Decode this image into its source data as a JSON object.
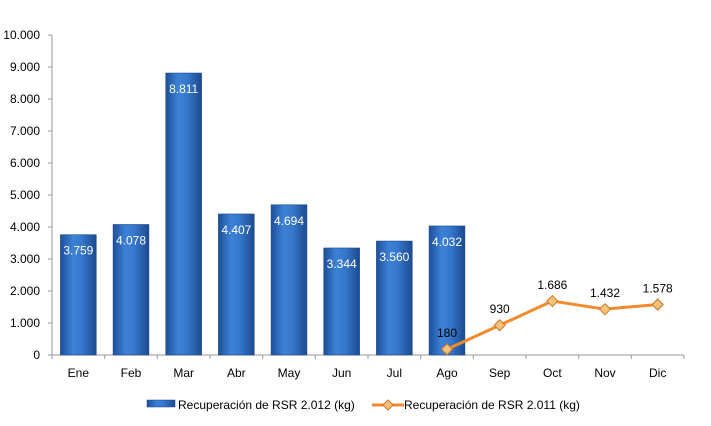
{
  "chart_data": {
    "type": "bar",
    "categories": [
      "Ene",
      "Feb",
      "Mar",
      "Abr",
      "May",
      "Jun",
      "Jul",
      "Ago",
      "Sep",
      "Oct",
      "Nov",
      "Dic"
    ],
    "series": [
      {
        "name": "Recuperación de RSR 2.012 (kg)",
        "type": "bar",
        "color": "#2e6fc4",
        "values": [
          3759,
          4078,
          8811,
          4407,
          4694,
          3344,
          3560,
          4032,
          null,
          null,
          null,
          null
        ],
        "labels": [
          "3.759",
          "4.078",
          "8.811",
          "4.407",
          "4.694",
          "3.344",
          "3.560",
          "4.032",
          "",
          "",
          "",
          ""
        ]
      },
      {
        "name": "Recuperación de RSR 2.011 (kg)",
        "type": "line",
        "color": "#f28a2e",
        "marker_color": "#f5c27a",
        "values": [
          null,
          null,
          null,
          null,
          null,
          null,
          null,
          180,
          930,
          1686,
          1432,
          1578
        ],
        "labels": [
          "",
          "",
          "",
          "",
          "",
          "",
          "",
          "180",
          "930",
          "1.686",
          "1.432",
          "1.578"
        ]
      }
    ],
    "ylim": [
      0,
      10000
    ],
    "yticks": [
      0,
      1000,
      2000,
      3000,
      4000,
      5000,
      6000,
      7000,
      8000,
      9000,
      10000
    ],
    "ytick_labels": [
      "0",
      "1.000",
      "2.000",
      "3.000",
      "4.000",
      "5.000",
      "6.000",
      "7.000",
      "8.000",
      "9.000",
      "10.000"
    ],
    "grid": false,
    "legend": "bottom",
    "title": "",
    "xlabel": "",
    "ylabel": ""
  }
}
